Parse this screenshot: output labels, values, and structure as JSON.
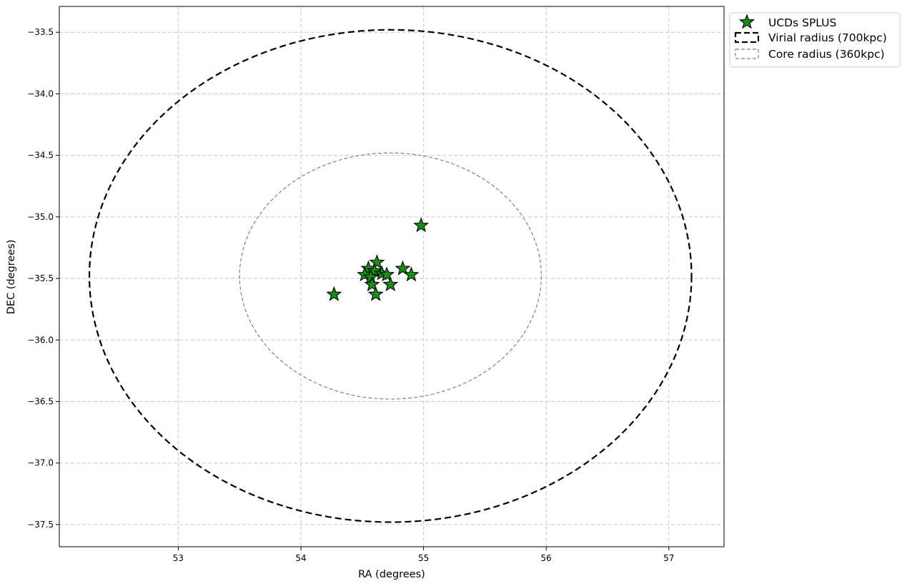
{
  "chart_data": {
    "type": "scatter",
    "xlabel": "RA (degrees)",
    "ylabel": "DEC (degrees)",
    "xlim": [
      52.03,
      57.45
    ],
    "ylim": [
      -37.68,
      -33.29
    ],
    "xticks": [
      53,
      54,
      55,
      56,
      57
    ],
    "yticks": [
      -33.5,
      -34.0,
      -34.5,
      -35.0,
      -35.5,
      -36.0,
      -36.5,
      -37.0,
      -37.5
    ],
    "grid": true,
    "legend_position": "outside-top-right",
    "colors": {
      "ucd_fill": "#1a8c1a",
      "ucd_edge": "#000000",
      "virial": "#000000",
      "core": "#808080",
      "grid": "#c8c8c8"
    },
    "series": [
      {
        "name": "UCDs SPLUS",
        "marker": "star",
        "points": [
          {
            "x": 54.98,
            "y": -35.07
          },
          {
            "x": 54.27,
            "y": -35.63
          },
          {
            "x": 54.62,
            "y": -35.37
          },
          {
            "x": 54.55,
            "y": -35.42
          },
          {
            "x": 54.6,
            "y": -35.44
          },
          {
            "x": 54.52,
            "y": -35.47
          },
          {
            "x": 54.57,
            "y": -35.49
          },
          {
            "x": 54.66,
            "y": -35.46
          },
          {
            "x": 54.7,
            "y": -35.47
          },
          {
            "x": 54.83,
            "y": -35.42
          },
          {
            "x": 54.9,
            "y": -35.47
          },
          {
            "x": 54.58,
            "y": -35.55
          },
          {
            "x": 54.73,
            "y": -35.55
          },
          {
            "x": 54.61,
            "y": -35.63
          }
        ]
      }
    ],
    "circles": [
      {
        "name": "Virial radius (700kpc)",
        "center": [
          54.73,
          -35.48
        ],
        "radius_ra": 2.455,
        "radius_dec": 2.0,
        "style": "dashed",
        "color": "#000000"
      },
      {
        "name": "Core radius (360kpc)",
        "center": [
          54.73,
          -35.48
        ],
        "radius_ra": 1.23,
        "radius_dec": 1.0,
        "style": "dashed",
        "color": "#808080"
      }
    ]
  }
}
